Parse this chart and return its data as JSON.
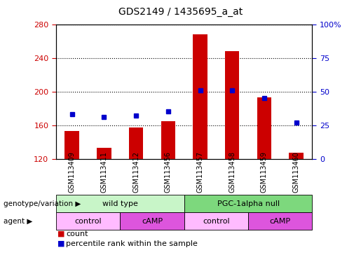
{
  "title": "GDS2149 / 1435695_a_at",
  "samples": [
    "GSM113409",
    "GSM113411",
    "GSM113412",
    "GSM113456",
    "GSM113457",
    "GSM113458",
    "GSM113459",
    "GSM113460"
  ],
  "count_values": [
    153,
    133,
    157,
    165,
    268,
    248,
    193,
    127
  ],
  "percentile_values": [
    33,
    31,
    32,
    35,
    51,
    51,
    45,
    27
  ],
  "ylim_left": [
    120,
    280
  ],
  "ylim_right": [
    0,
    100
  ],
  "yticks_left": [
    120,
    160,
    200,
    240,
    280
  ],
  "yticks_right": [
    0,
    25,
    50,
    75,
    100
  ],
  "bar_color": "#cc0000",
  "dot_color": "#0000cc",
  "bar_bottom": 120,
  "genotype_groups": [
    {
      "label": "wild type",
      "start": 0,
      "end": 4,
      "color": "#c8f5c8"
    },
    {
      "label": "PGC-1alpha null",
      "start": 4,
      "end": 8,
      "color": "#7dd87d"
    }
  ],
  "agent_groups": [
    {
      "label": "control",
      "start": 0,
      "end": 2,
      "color": "#ffbbff"
    },
    {
      "label": "cAMP",
      "start": 2,
      "end": 4,
      "color": "#dd55dd"
    },
    {
      "label": "control",
      "start": 4,
      "end": 6,
      "color": "#ffbbff"
    },
    {
      "label": "cAMP",
      "start": 6,
      "end": 8,
      "color": "#dd55dd"
    }
  ],
  "genotype_label": "genotype/variation",
  "agent_label": "agent",
  "legend_count": "count",
  "legend_pct": "percentile rank within the sample",
  "tick_color_left": "#cc0000",
  "tick_color_right": "#0000cc",
  "bar_width": 0.45,
  "fig_width": 5.15,
  "fig_height": 3.84,
  "dpi": 100
}
